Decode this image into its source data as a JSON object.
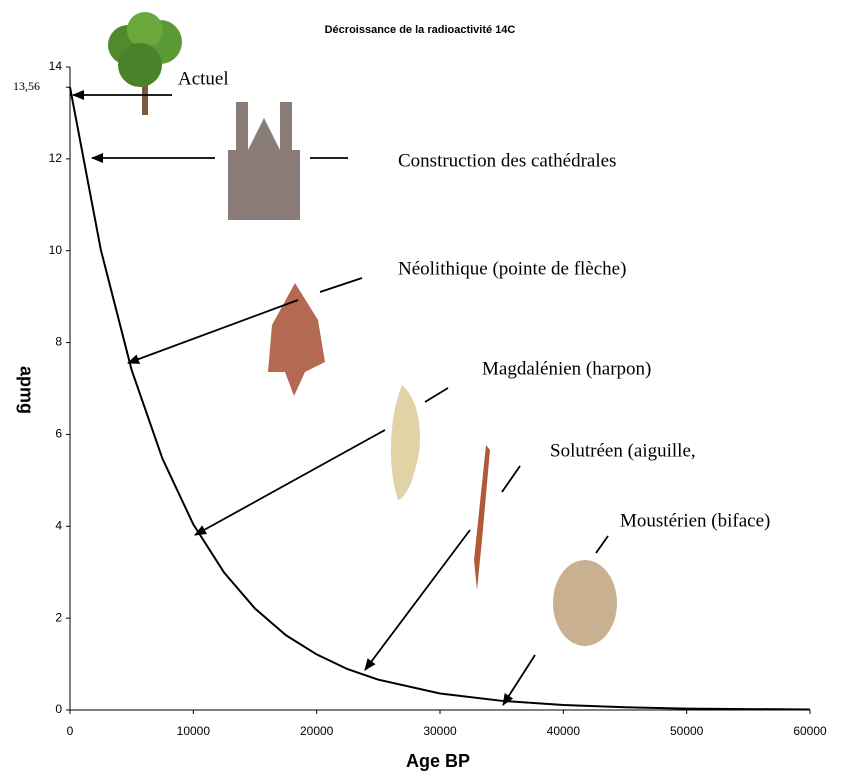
{
  "chart_data": {
    "type": "line",
    "title": "Décroissance de la radioactivité 14C",
    "x_label": "Age BP",
    "y_label": "apmg",
    "x": [
      0,
      2500,
      5000,
      7500,
      10000,
      12500,
      15000,
      17500,
      20000,
      22500,
      25000,
      30000,
      35000,
      40000,
      45000,
      50000,
      55000,
      60000
    ],
    "values": [
      13.56,
      10.02,
      7.4,
      5.47,
      4.04,
      2.99,
      2.21,
      1.63,
      1.21,
      0.89,
      0.66,
      0.36,
      0.2,
      0.11,
      0.06,
      0.03,
      0.02,
      0.01
    ],
    "color": "#000000",
    "xlim": [
      0,
      60000
    ],
    "ylim": [
      0,
      14
    ],
    "xticks": [
      0,
      10000,
      20000,
      30000,
      40000,
      50000,
      60000
    ],
    "yticks": [
      0,
      2,
      4,
      6,
      8,
      10,
      12,
      {
        "value": 13.56,
        "label": "13,56"
      },
      14
    ],
    "annotations": [
      "Actuel",
      "Construction des cathédrales",
      "Néolithique (pointe de flèche)",
      "Magdalénien (harpon)",
      "Solutréen (aiguille,",
      "Moustérien (biface)"
    ]
  }
}
